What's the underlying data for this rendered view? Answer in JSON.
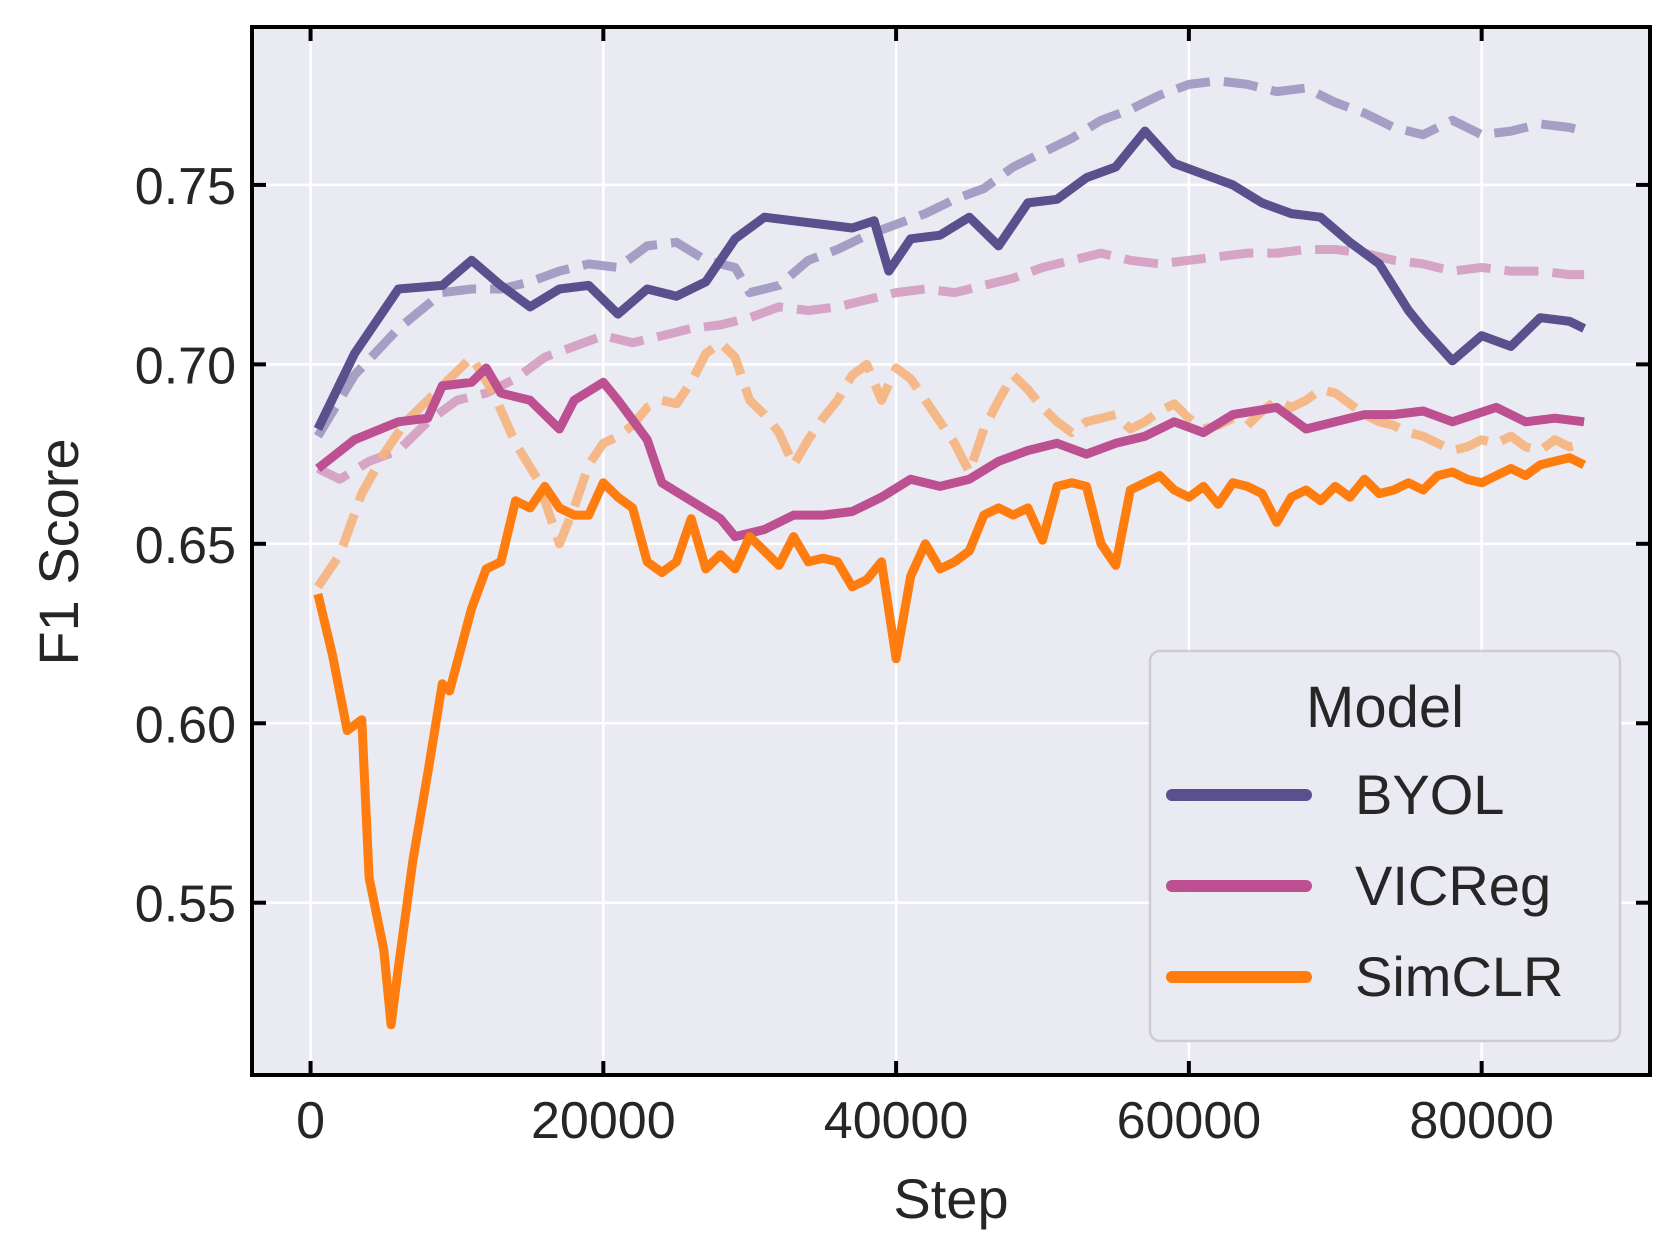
{
  "chart_data": {
    "type": "line",
    "xlabel": "Step",
    "ylabel": "F1 Score",
    "xlim": [
      -4000,
      91500
    ],
    "ylim": [
      0.502,
      0.794
    ],
    "xticks": [
      0,
      20000,
      40000,
      60000,
      80000
    ],
    "yticks": [
      0.55,
      0.6,
      0.65,
      0.7,
      0.75
    ],
    "xtick_labels": [
      "0",
      "20000",
      "40000",
      "60000",
      "80000"
    ],
    "ytick_labels": [
      "0.55",
      "0.60",
      "0.65",
      "0.70",
      "0.75"
    ],
    "grid": true,
    "background": "#eaeaf2",
    "legend": {
      "title": "Model",
      "placement": "lower-right",
      "entries": [
        "BYOL",
        "VICReg",
        "SimCLR"
      ]
    },
    "series": [
      {
        "name": "BYOL",
        "style": "solid",
        "color": "#59508d",
        "x": [
          500,
          3000,
          6000,
          9000,
          11000,
          13000,
          15000,
          17000,
          19000,
          21000,
          23000,
          25000,
          27000,
          29000,
          31000,
          33000,
          35000,
          37000,
          38500,
          39500,
          41000,
          43000,
          45000,
          47000,
          49000,
          51000,
          53000,
          55000,
          57000,
          59000,
          61000,
          63000,
          65000,
          67000,
          69000,
          71000,
          73000,
          75000,
          76000,
          78000,
          80000,
          82000,
          84000,
          86000,
          87000
        ],
        "y": [
          0.682,
          0.703,
          0.721,
          0.722,
          0.729,
          0.722,
          0.716,
          0.721,
          0.722,
          0.714,
          0.721,
          0.719,
          0.723,
          0.735,
          0.741,
          0.74,
          0.739,
          0.738,
          0.74,
          0.726,
          0.735,
          0.736,
          0.741,
          0.733,
          0.745,
          0.746,
          0.752,
          0.755,
          0.765,
          0.756,
          0.753,
          0.75,
          0.745,
          0.742,
          0.741,
          0.734,
          0.728,
          0.715,
          0.71,
          0.701,
          0.708,
          0.705,
          0.713,
          0.712,
          0.71
        ]
      },
      {
        "name": "VICReg",
        "style": "solid",
        "color": "#bc5090",
        "x": [
          500,
          3000,
          6000,
          8000,
          9000,
          11000,
          12000,
          13000,
          15000,
          17000,
          18000,
          20000,
          21000,
          23000,
          24000,
          26000,
          28000,
          29000,
          31000,
          33000,
          35000,
          37000,
          39000,
          41000,
          43000,
          45000,
          47000,
          49000,
          51000,
          53000,
          55000,
          57000,
          59000,
          61000,
          63000,
          66000,
          68000,
          70000,
          72000,
          74000,
          76000,
          78000,
          81000,
          83000,
          85000,
          87000
        ],
        "y": [
          0.671,
          0.679,
          0.684,
          0.685,
          0.694,
          0.695,
          0.699,
          0.692,
          0.69,
          0.682,
          0.69,
          0.695,
          0.69,
          0.679,
          0.667,
          0.662,
          0.657,
          0.652,
          0.654,
          0.658,
          0.658,
          0.659,
          0.663,
          0.668,
          0.666,
          0.668,
          0.673,
          0.676,
          0.678,
          0.675,
          0.678,
          0.68,
          0.684,
          0.681,
          0.686,
          0.688,
          0.682,
          0.684,
          0.686,
          0.686,
          0.687,
          0.684,
          0.688,
          0.684,
          0.685,
          0.684
        ]
      },
      {
        "name": "SimCLR",
        "style": "solid",
        "color": "#ff7c0f",
        "x": [
          500,
          1500,
          2500,
          3500,
          4000,
          5000,
          5500,
          6000,
          7000,
          8000,
          9000,
          9500,
          11000,
          12000,
          13000,
          14000,
          15000,
          16000,
          17000,
          18000,
          19000,
          20000,
          21000,
          22000,
          23000,
          24000,
          25000,
          26000,
          27000,
          28000,
          29000,
          30000,
          31000,
          32000,
          33000,
          34000,
          35000,
          36000,
          37000,
          38000,
          39000,
          40000,
          41000,
          42000,
          43000,
          44000,
          45000,
          46000,
          47000,
          48000,
          49000,
          50000,
          51000,
          52000,
          53000,
          54000,
          55000,
          56000,
          57000,
          58000,
          59000,
          60000,
          61000,
          62000,
          63000,
          64000,
          65000,
          66000,
          67000,
          68000,
          69000,
          70000,
          71000,
          72000,
          73000,
          74000,
          75000,
          76000,
          77000,
          78000,
          79000,
          80000,
          81000,
          82000,
          83000,
          84000,
          85000,
          86000,
          87000
        ],
        "y": [
          0.636,
          0.619,
          0.598,
          0.601,
          0.557,
          0.537,
          0.516,
          0.532,
          0.562,
          0.586,
          0.611,
          0.609,
          0.632,
          0.643,
          0.645,
          0.662,
          0.66,
          0.666,
          0.66,
          0.658,
          0.658,
          0.667,
          0.663,
          0.66,
          0.645,
          0.642,
          0.645,
          0.657,
          0.643,
          0.647,
          0.643,
          0.652,
          0.648,
          0.644,
          0.652,
          0.645,
          0.646,
          0.645,
          0.638,
          0.64,
          0.645,
          0.618,
          0.641,
          0.65,
          0.643,
          0.645,
          0.648,
          0.658,
          0.66,
          0.658,
          0.66,
          0.651,
          0.666,
          0.667,
          0.666,
          0.65,
          0.644,
          0.665,
          0.667,
          0.669,
          0.665,
          0.663,
          0.666,
          0.661,
          0.667,
          0.666,
          0.664,
          0.656,
          0.663,
          0.665,
          0.662,
          0.666,
          0.663,
          0.668,
          0.664,
          0.665,
          0.667,
          0.665,
          0.669,
          0.67,
          0.668,
          0.667,
          0.669,
          0.671,
          0.669,
          0.672,
          0.673,
          0.674,
          0.672
        ]
      },
      {
        "style": "dashed",
        "color": "#9d97c0",
        "x": [
          500,
          3000,
          6000,
          9000,
          11000,
          13000,
          15000,
          17000,
          19000,
          21000,
          23000,
          25000,
          27000,
          29000,
          30000,
          32000,
          34000,
          36000,
          38000,
          40000,
          42000,
          44000,
          46000,
          48000,
          50000,
          52000,
          54000,
          56000,
          58000,
          60000,
          62000,
          64000,
          66000,
          68000,
          70000,
          72000,
          74000,
          76000,
          78000,
          80000,
          82000,
          84000,
          86000,
          87000
        ],
        "y": [
          0.68,
          0.697,
          0.71,
          0.72,
          0.721,
          0.721,
          0.723,
          0.726,
          0.728,
          0.727,
          0.733,
          0.734,
          0.729,
          0.727,
          0.72,
          0.722,
          0.729,
          0.732,
          0.736,
          0.739,
          0.742,
          0.746,
          0.749,
          0.755,
          0.759,
          0.763,
          0.768,
          0.771,
          0.775,
          0.778,
          0.779,
          0.778,
          0.776,
          0.777,
          0.773,
          0.77,
          0.766,
          0.764,
          0.768,
          0.764,
          0.765,
          0.767,
          0.766,
          0.765
        ]
      },
      {
        "style": "dashed",
        "color": "#d49dc0",
        "x": [
          500,
          2000,
          4000,
          6000,
          8000,
          10000,
          12000,
          14000,
          16000,
          18000,
          20000,
          22000,
          24000,
          26000,
          28000,
          30000,
          32000,
          34000,
          36000,
          38000,
          40000,
          42000,
          44000,
          46000,
          48000,
          50000,
          52000,
          54000,
          56000,
          58000,
          60000,
          62000,
          64000,
          66000,
          68000,
          70000,
          72000,
          74000,
          76000,
          78000,
          80000,
          82000,
          84000,
          86000,
          87000
        ],
        "y": [
          0.671,
          0.668,
          0.673,
          0.676,
          0.684,
          0.69,
          0.692,
          0.696,
          0.702,
          0.705,
          0.708,
          0.706,
          0.708,
          0.71,
          0.711,
          0.713,
          0.716,
          0.715,
          0.716,
          0.718,
          0.72,
          0.721,
          0.72,
          0.722,
          0.724,
          0.727,
          0.729,
          0.731,
          0.729,
          0.728,
          0.729,
          0.73,
          0.731,
          0.731,
          0.732,
          0.732,
          0.731,
          0.729,
          0.728,
          0.726,
          0.727,
          0.726,
          0.726,
          0.725,
          0.725
        ]
      },
      {
        "style": "dashed",
        "color": "#f6b47d",
        "x": [
          500,
          2000,
          3500,
          5000,
          6500,
          8000,
          9500,
          11000,
          12500,
          14000,
          15500,
          17000,
          18000,
          19000,
          20000,
          21000,
          22000,
          23000,
          24000,
          25000,
          26000,
          27000,
          28000,
          29000,
          30000,
          31000,
          32000,
          33000,
          34000,
          35000,
          36000,
          37000,
          38000,
          39000,
          40000,
          41000,
          42000,
          43000,
          44000,
          45000,
          46000,
          47000,
          48000,
          49000,
          50000,
          51000,
          52000,
          53000,
          54000,
          55000,
          56000,
          57000,
          58000,
          59000,
          60000,
          61000,
          62000,
          63000,
          64000,
          65000,
          66000,
          67000,
          68000,
          69000,
          70000,
          71000,
          72000,
          73000,
          74000,
          75000,
          76000,
          77000,
          78000,
          79000,
          80000,
          81000,
          82000,
          83000,
          84000,
          85000,
          86000,
          87000
        ],
        "y": [
          0.638,
          0.647,
          0.664,
          0.675,
          0.684,
          0.69,
          0.696,
          0.702,
          0.692,
          0.678,
          0.668,
          0.65,
          0.66,
          0.672,
          0.678,
          0.68,
          0.683,
          0.688,
          0.69,
          0.689,
          0.695,
          0.703,
          0.706,
          0.702,
          0.69,
          0.686,
          0.681,
          0.672,
          0.679,
          0.685,
          0.69,
          0.697,
          0.7,
          0.69,
          0.699,
          0.696,
          0.69,
          0.684,
          0.678,
          0.67,
          0.682,
          0.69,
          0.697,
          0.693,
          0.688,
          0.684,
          0.681,
          0.684,
          0.685,
          0.686,
          0.682,
          0.684,
          0.687,
          0.689,
          0.685,
          0.682,
          0.683,
          0.685,
          0.683,
          0.687,
          0.69,
          0.688,
          0.69,
          0.693,
          0.692,
          0.689,
          0.686,
          0.684,
          0.683,
          0.681,
          0.68,
          0.678,
          0.676,
          0.677,
          0.679,
          0.678,
          0.68,
          0.677,
          0.676,
          0.679,
          0.677,
          0.678
        ]
      }
    ]
  }
}
